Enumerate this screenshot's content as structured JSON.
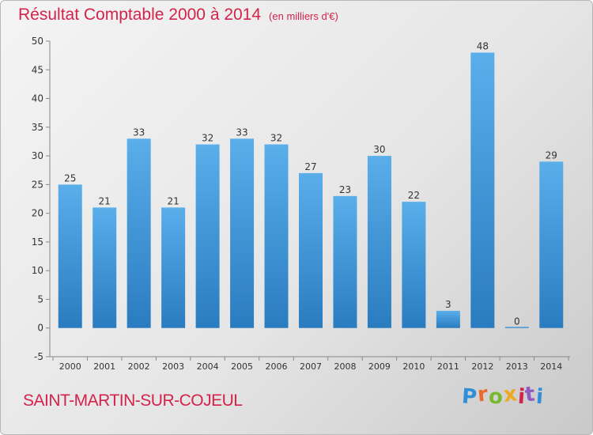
{
  "header": {
    "title": "Résultat Comptable 2000 à 2014",
    "unit": "(en milliers d'€)"
  },
  "footer": {
    "commune": "SAINT-MARTIN-SUR-COJEUL",
    "logo_letters": [
      "P",
      "r",
      "o",
      "x",
      "i",
      "t",
      "i"
    ]
  },
  "chart_data": {
    "type": "bar",
    "title": "Résultat Comptable 2000 à 2014",
    "subtitle": "(en milliers d'€)",
    "categories": [
      "2000",
      "2001",
      "2002",
      "2003",
      "2004",
      "2005",
      "2006",
      "2007",
      "2008",
      "2009",
      "2010",
      "2011",
      "2012",
      "2013",
      "2014"
    ],
    "values": [
      25,
      21,
      33,
      21,
      32,
      33,
      32,
      27,
      23,
      30,
      22,
      3,
      48,
      0,
      29
    ],
    "ylim": [
      -5,
      50
    ],
    "yticks": [
      -5,
      0,
      5,
      10,
      15,
      20,
      25,
      30,
      35,
      40,
      45,
      50
    ],
    "grid": false,
    "colors": {
      "bar_light": "#5aaeea",
      "bar_dark": "#2a7cc0",
      "axis": "#888888",
      "label": "#333333"
    }
  }
}
